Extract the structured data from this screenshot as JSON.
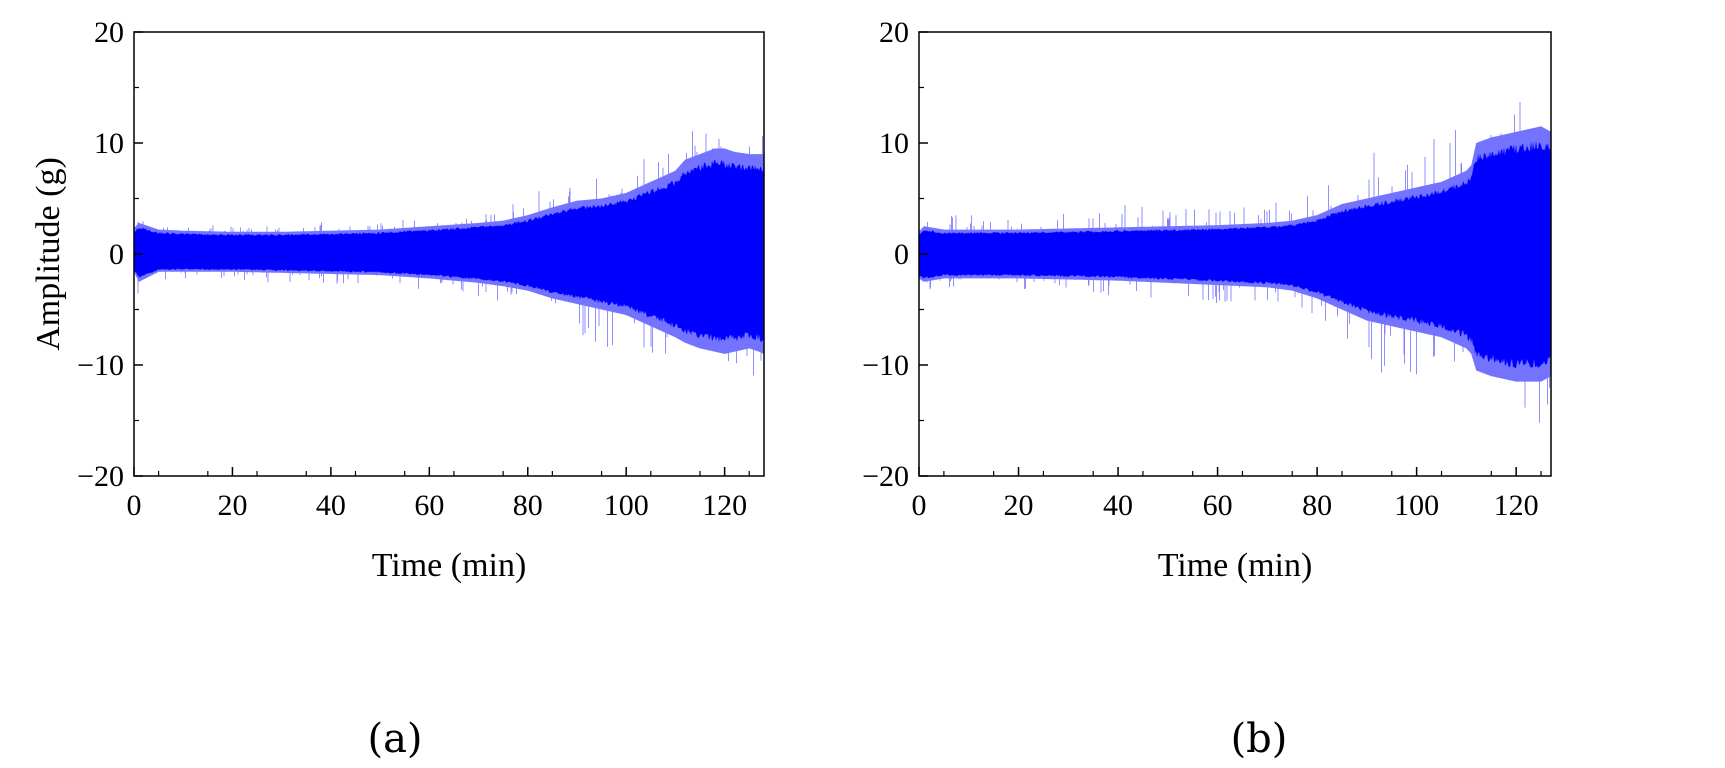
{
  "chart_data": [
    {
      "type": "line",
      "panel_label": "(a)",
      "title": "",
      "xlabel": "Time (min)",
      "ylabel": "Amplitude (g)",
      "xlim": [
        0,
        128
      ],
      "ylim": [
        -20,
        20
      ],
      "xticks": [
        0,
        20,
        40,
        60,
        80,
        100,
        120
      ],
      "yticks": [
        -20,
        -10,
        0,
        10,
        20
      ],
      "xtick_labels": [
        "0",
        "20",
        "40",
        "60",
        "80",
        "100",
        "120"
      ],
      "ytick_labels": [
        "−20",
        "−10",
        "0",
        "10",
        "20"
      ],
      "grid": false,
      "color": "#0000ff",
      "series": [
        {
          "envelope": {
            "x": [
              0,
              1,
              5,
              10,
              20,
              30,
              40,
              50,
              60,
              70,
              75,
              80,
              85,
              90,
              95,
              100,
              105,
              110,
              112,
              115,
              118,
              120,
              122,
              125,
              127,
              128
            ],
            "upper": [
              2.3,
              2.8,
              2.2,
              2.1,
              2.0,
              2.0,
              2.1,
              2.2,
              2.5,
              2.8,
              3.0,
              3.5,
              4.2,
              4.8,
              5.0,
              5.5,
              6.5,
              7.5,
              8.5,
              9.0,
              9.5,
              9.5,
              9.2,
              9.0,
              9.0,
              9.0
            ],
            "lower": [
              -1.6,
              -2.5,
              -1.6,
              -1.6,
              -1.6,
              -1.7,
              -1.8,
              -1.9,
              -2.2,
              -2.6,
              -2.9,
              -3.3,
              -4.0,
              -4.5,
              -5.0,
              -5.5,
              -6.5,
              -7.5,
              -8.0,
              -8.5,
              -8.8,
              -9.0,
              -8.8,
              -8.5,
              -8.8,
              -9.0
            ],
            "peak_max": [
              2.8,
              3.3,
              2.8,
              2.7,
              2.7,
              2.8,
              2.9,
              3.0,
              3.2,
              3.8,
              4.2,
              5.0,
              6.5,
              7.0,
              7.5,
              8.5,
              9.5,
              10.5,
              11.5,
              11.5,
              10.5,
              11.0,
              10.5,
              11.0,
              12.5,
              10.0
            ],
            "peak_min": [
              -2.5,
              -3.8,
              -2.5,
              -2.4,
              -2.5,
              -2.6,
              -2.7,
              -2.9,
              -3.3,
              -3.8,
              -4.5,
              -5.0,
              -6.5,
              -7.5,
              -8.5,
              -9.5,
              -10.0,
              -11.0,
              -11.5,
              -12.0,
              -11.5,
              -12.5,
              -12.0,
              -12.5,
              -15.5,
              -12.0
            ]
          }
        }
      ]
    },
    {
      "type": "line",
      "panel_label": "(b)",
      "title": "",
      "xlabel": "Time (min)",
      "ylabel": "Amplitude (g)",
      "xlim": [
        0,
        127
      ],
      "ylim": [
        -20,
        20
      ],
      "xticks": [
        0,
        20,
        40,
        60,
        80,
        100,
        120
      ],
      "yticks": [
        -20,
        -10,
        0,
        10,
        20
      ],
      "xtick_labels": [
        "0",
        "20",
        "40",
        "60",
        "80",
        "100",
        "120"
      ],
      "ytick_labels": [
        "−20",
        "−10",
        "0",
        "10",
        "20"
      ],
      "grid": false,
      "color": "#0000ff",
      "series": [
        {
          "envelope": {
            "x": [
              0,
              1,
              5,
              10,
              20,
              30,
              40,
              50,
              60,
              70,
              75,
              80,
              85,
              90,
              95,
              100,
              105,
              110,
              111,
              112,
              115,
              120,
              125,
              127
            ],
            "upper": [
              2.0,
              2.5,
              2.2,
              2.2,
              2.2,
              2.3,
              2.4,
              2.5,
              2.6,
              2.8,
              3.0,
              3.5,
              4.5,
              5.0,
              5.5,
              6.0,
              6.5,
              7.5,
              8.0,
              10.0,
              10.5,
              11.0,
              11.5,
              11.0
            ],
            "lower": [
              -2.2,
              -2.5,
              -2.2,
              -2.2,
              -2.2,
              -2.3,
              -2.4,
              -2.6,
              -2.8,
              -3.0,
              -3.3,
              -4.0,
              -5.0,
              -6.0,
              -6.5,
              -7.0,
              -7.5,
              -8.5,
              -9.0,
              -10.5,
              -11.0,
              -11.5,
              -11.5,
              -11.0
            ],
            "peak_max": [
              3.0,
              4.2,
              3.5,
              3.5,
              3.5,
              3.8,
              4.5,
              4.0,
              4.2,
              4.5,
              5.0,
              6.0,
              8.0,
              10.0,
              9.5,
              10.5,
              12.0,
              12.5,
              13.5,
              14.0,
              14.5,
              15.0,
              15.0,
              14.0
            ],
            "peak_min": [
              -3.0,
              -3.5,
              -3.2,
              -3.2,
              -3.3,
              -3.5,
              -3.8,
              -4.2,
              -4.5,
              -5.0,
              -5.5,
              -6.5,
              -8.0,
              -11.5,
              -10.5,
              -11.0,
              -11.5,
              -12.5,
              -14.5,
              -13.5,
              -14.5,
              -14.5,
              -16.0,
              -15.0
            ]
          }
        }
      ]
    }
  ]
}
